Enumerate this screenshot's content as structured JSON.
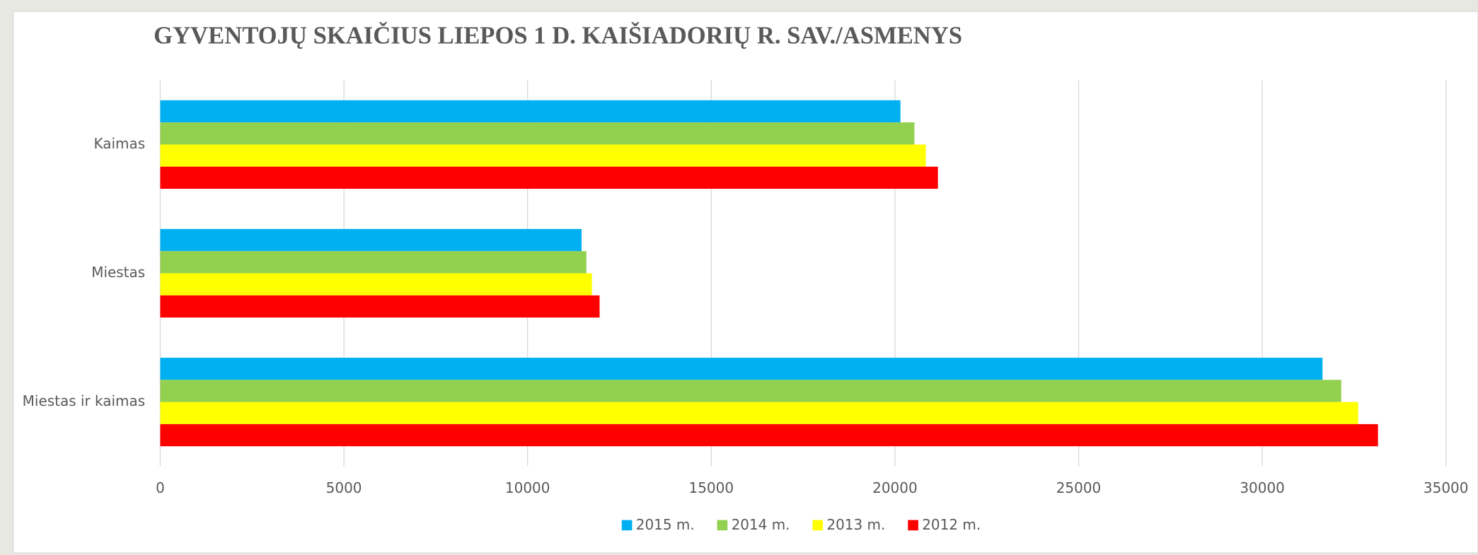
{
  "chart_data": {
    "type": "hbar",
    "title": "GYVENTOJŲ  SKAIČIUS LIEPOS 1 D. KAIŠIADORIŲ  R. SAV./ASMENYS",
    "categories": [
      "Kaimas",
      "Miestas",
      "Miestas ir kaimas"
    ],
    "series": [
      {
        "name": "2015 m.",
        "color": "#00b0f0",
        "values": [
          20150,
          11470,
          31640
        ]
      },
      {
        "name": "2014 m.",
        "color": "#92d050",
        "values": [
          20530,
          11600,
          32150
        ]
      },
      {
        "name": "2013 m.",
        "color": "#ffff00",
        "values": [
          20840,
          11750,
          32610
        ]
      },
      {
        "name": "2012 m.",
        "color": "#ff0000",
        "values": [
          21170,
          11960,
          33150
        ]
      }
    ],
    "xlim": [
      0,
      35000
    ],
    "xticks": [
      0,
      5000,
      10000,
      15000,
      20000,
      25000,
      30000,
      35000
    ],
    "grid": true,
    "legend": "bottom"
  }
}
